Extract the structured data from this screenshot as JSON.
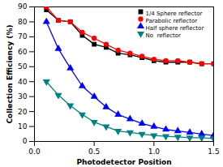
{
  "chart_data": {
    "type": "line",
    "xlabel": "Photodetector Position",
    "ylabel": "Collection Efficiency (%)",
    "x": [
      0.1,
      0.2,
      0.3,
      0.4,
      0.5,
      0.6,
      0.7,
      0.8,
      0.9,
      1.0,
      1.1,
      1.2,
      1.3,
      1.4,
      1.5
    ],
    "series": [
      {
        "name": "1/4 Sphere reflector",
        "color": "#000000",
        "marker": "square",
        "values": [
          88,
          81,
          80,
          71,
          65,
          63,
          59,
          58,
          56,
          54,
          53,
          53,
          53,
          52,
          52
        ]
      },
      {
        "name": "Parabolic reflector",
        "color": "#ff0000",
        "marker": "circle",
        "values": [
          90,
          81,
          80,
          73,
          69,
          65,
          61,
          59,
          57,
          55,
          54,
          54,
          53,
          52,
          52
        ]
      },
      {
        "name": "Half sphere reflector",
        "color": "#0000ff",
        "marker": "triangle_up",
        "values": [
          80,
          62,
          49,
          37,
          30,
          23,
          18,
          15,
          12,
          10,
          8,
          7,
          6,
          5,
          4
        ]
      },
      {
        "name": "No  reflector",
        "color": "#008080",
        "marker": "triangle_down",
        "values": [
          40,
          31,
          24,
          18,
          13,
          10,
          7,
          6,
          5,
          4,
          3.5,
          3,
          2.5,
          2.5,
          2
        ]
      }
    ],
    "xlim": [
      0.0,
      1.5
    ],
    "ylim": [
      0,
      90
    ],
    "xticks": [
      {
        "value": 0.0,
        "label": "0.0"
      },
      {
        "value": 0.5,
        "label": "0.5"
      },
      {
        "value": 1.0,
        "label": "1.0"
      },
      {
        "value": 1.5,
        "label": "1.5"
      }
    ],
    "yticks": [
      0,
      10,
      20,
      30,
      40,
      50,
      60,
      70,
      80,
      90
    ],
    "legend": "upper right",
    "grid": false
  }
}
